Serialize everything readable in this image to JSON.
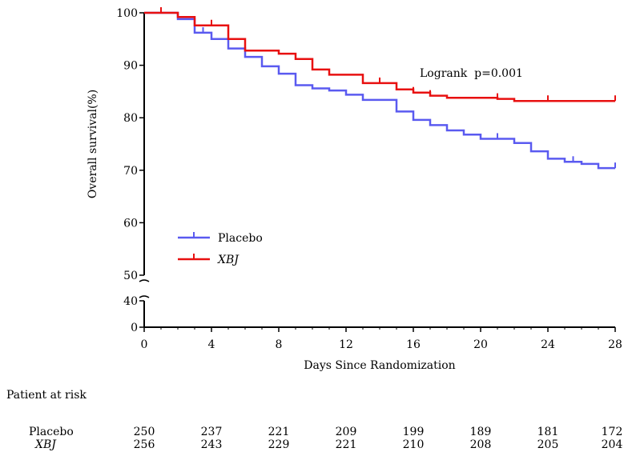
{
  "chart_data": {
    "type": "line",
    "step": true,
    "title": "",
    "xlabel": "Days Since Randomization",
    "ylabel": "Overall survival(%)",
    "xlim": [
      0,
      28
    ],
    "ylim": [
      0,
      100
    ],
    "axis_break": [
      40,
      50
    ],
    "x_ticks": [
      "0",
      "4",
      "8",
      "12",
      "16",
      "20",
      "24",
      "28"
    ],
    "y_ticks_upper": [
      "50",
      "60",
      "70",
      "80",
      "90",
      "100"
    ],
    "y_ticks_lower": [
      "0",
      "40"
    ],
    "legend_placement": "lower-left",
    "annotation": "Logrank  p=0.001",
    "series": [
      {
        "name": "Placebo",
        "color": "#5a5af0",
        "x": [
          0,
          2,
          3,
          4,
          5,
          6,
          7,
          8,
          9,
          10,
          11,
          12,
          13,
          15,
          16,
          17,
          18,
          19,
          20,
          22,
          23,
          24,
          25,
          26,
          27,
          28
        ],
        "y": [
          100,
          98.8,
          96.2,
          95,
          93.2,
          91.6,
          89.8,
          88.4,
          86.2,
          85.6,
          85.2,
          84.4,
          83.4,
          81.2,
          79.6,
          78.6,
          77.6,
          76.8,
          76,
          75.2,
          73.6,
          72.2,
          71.6,
          71.2,
          70.4,
          70.4
        ],
        "censor_x": [
          3.5,
          17,
          18,
          21,
          25.5,
          28
        ]
      },
      {
        "name": "XBJ",
        "color": "#e81010",
        "x": [
          0,
          2,
          3,
          5,
          6,
          8,
          9,
          10,
          11,
          13,
          15,
          16,
          17,
          18,
          21,
          22,
          28
        ],
        "y": [
          100,
          99.2,
          97.6,
          95,
          92.8,
          92.2,
          91.2,
          89.2,
          88.2,
          86.6,
          85.4,
          84.8,
          84.2,
          83.8,
          83.6,
          83.2,
          83.2
        ],
        "censor_x": [
          1,
          4,
          14,
          16,
          17,
          21,
          24,
          28
        ]
      }
    ]
  },
  "risk_table": {
    "title": "Patient at risk",
    "rows": [
      {
        "name": "Placebo",
        "values": [
          "250",
          "237",
          "221",
          "209",
          "199",
          "189",
          "181",
          "172"
        ]
      },
      {
        "name": "XBJ",
        "values": [
          "256",
          "243",
          "229",
          "221",
          "210",
          "208",
          "205",
          "204"
        ]
      }
    ]
  }
}
